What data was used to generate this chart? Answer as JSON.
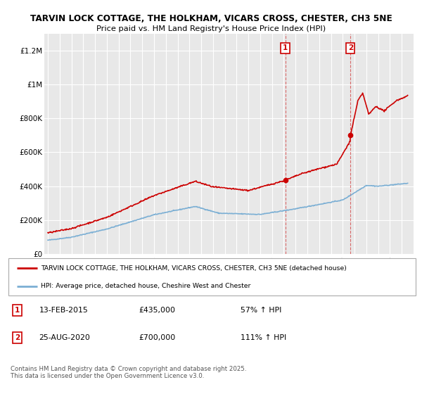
{
  "title_line1": "TARVIN LOCK COTTAGE, THE HOLKHAM, VICARS CROSS, CHESTER, CH3 5NE",
  "title_line2": "Price paid vs. HM Land Registry's House Price Index (HPI)",
  "ylim": [
    0,
    1300000
  ],
  "yticks": [
    0,
    200000,
    400000,
    600000,
    800000,
    1000000,
    1200000
  ],
  "ytick_labels": [
    "£0",
    "£200K",
    "£400K",
    "£600K",
    "£800K",
    "£1M",
    "£1.2M"
  ],
  "background_color": "#ffffff",
  "plot_bg_color": "#e8e8e8",
  "grid_color": "#ffffff",
  "red_color": "#cc0000",
  "blue_color": "#7bafd4",
  "purchase1_x": 2015.12,
  "purchase1_price": 435000,
  "purchase1_date": "13-FEB-2015",
  "purchase1_pct": "57% ↑ HPI",
  "purchase2_x": 2020.65,
  "purchase2_price": 700000,
  "purchase2_date": "25-AUG-2020",
  "purchase2_pct": "111% ↑ HPI",
  "legend_label_red": "TARVIN LOCK COTTAGE, THE HOLKHAM, VICARS CROSS, CHESTER, CH3 5NE (detached house)",
  "legend_label_blue": "HPI: Average price, detached house, Cheshire West and Chester",
  "footnote": "Contains HM Land Registry data © Crown copyright and database right 2025.\nThis data is licensed under the Open Government Licence v3.0.",
  "xmin": 1994.7,
  "xmax": 2026.0
}
